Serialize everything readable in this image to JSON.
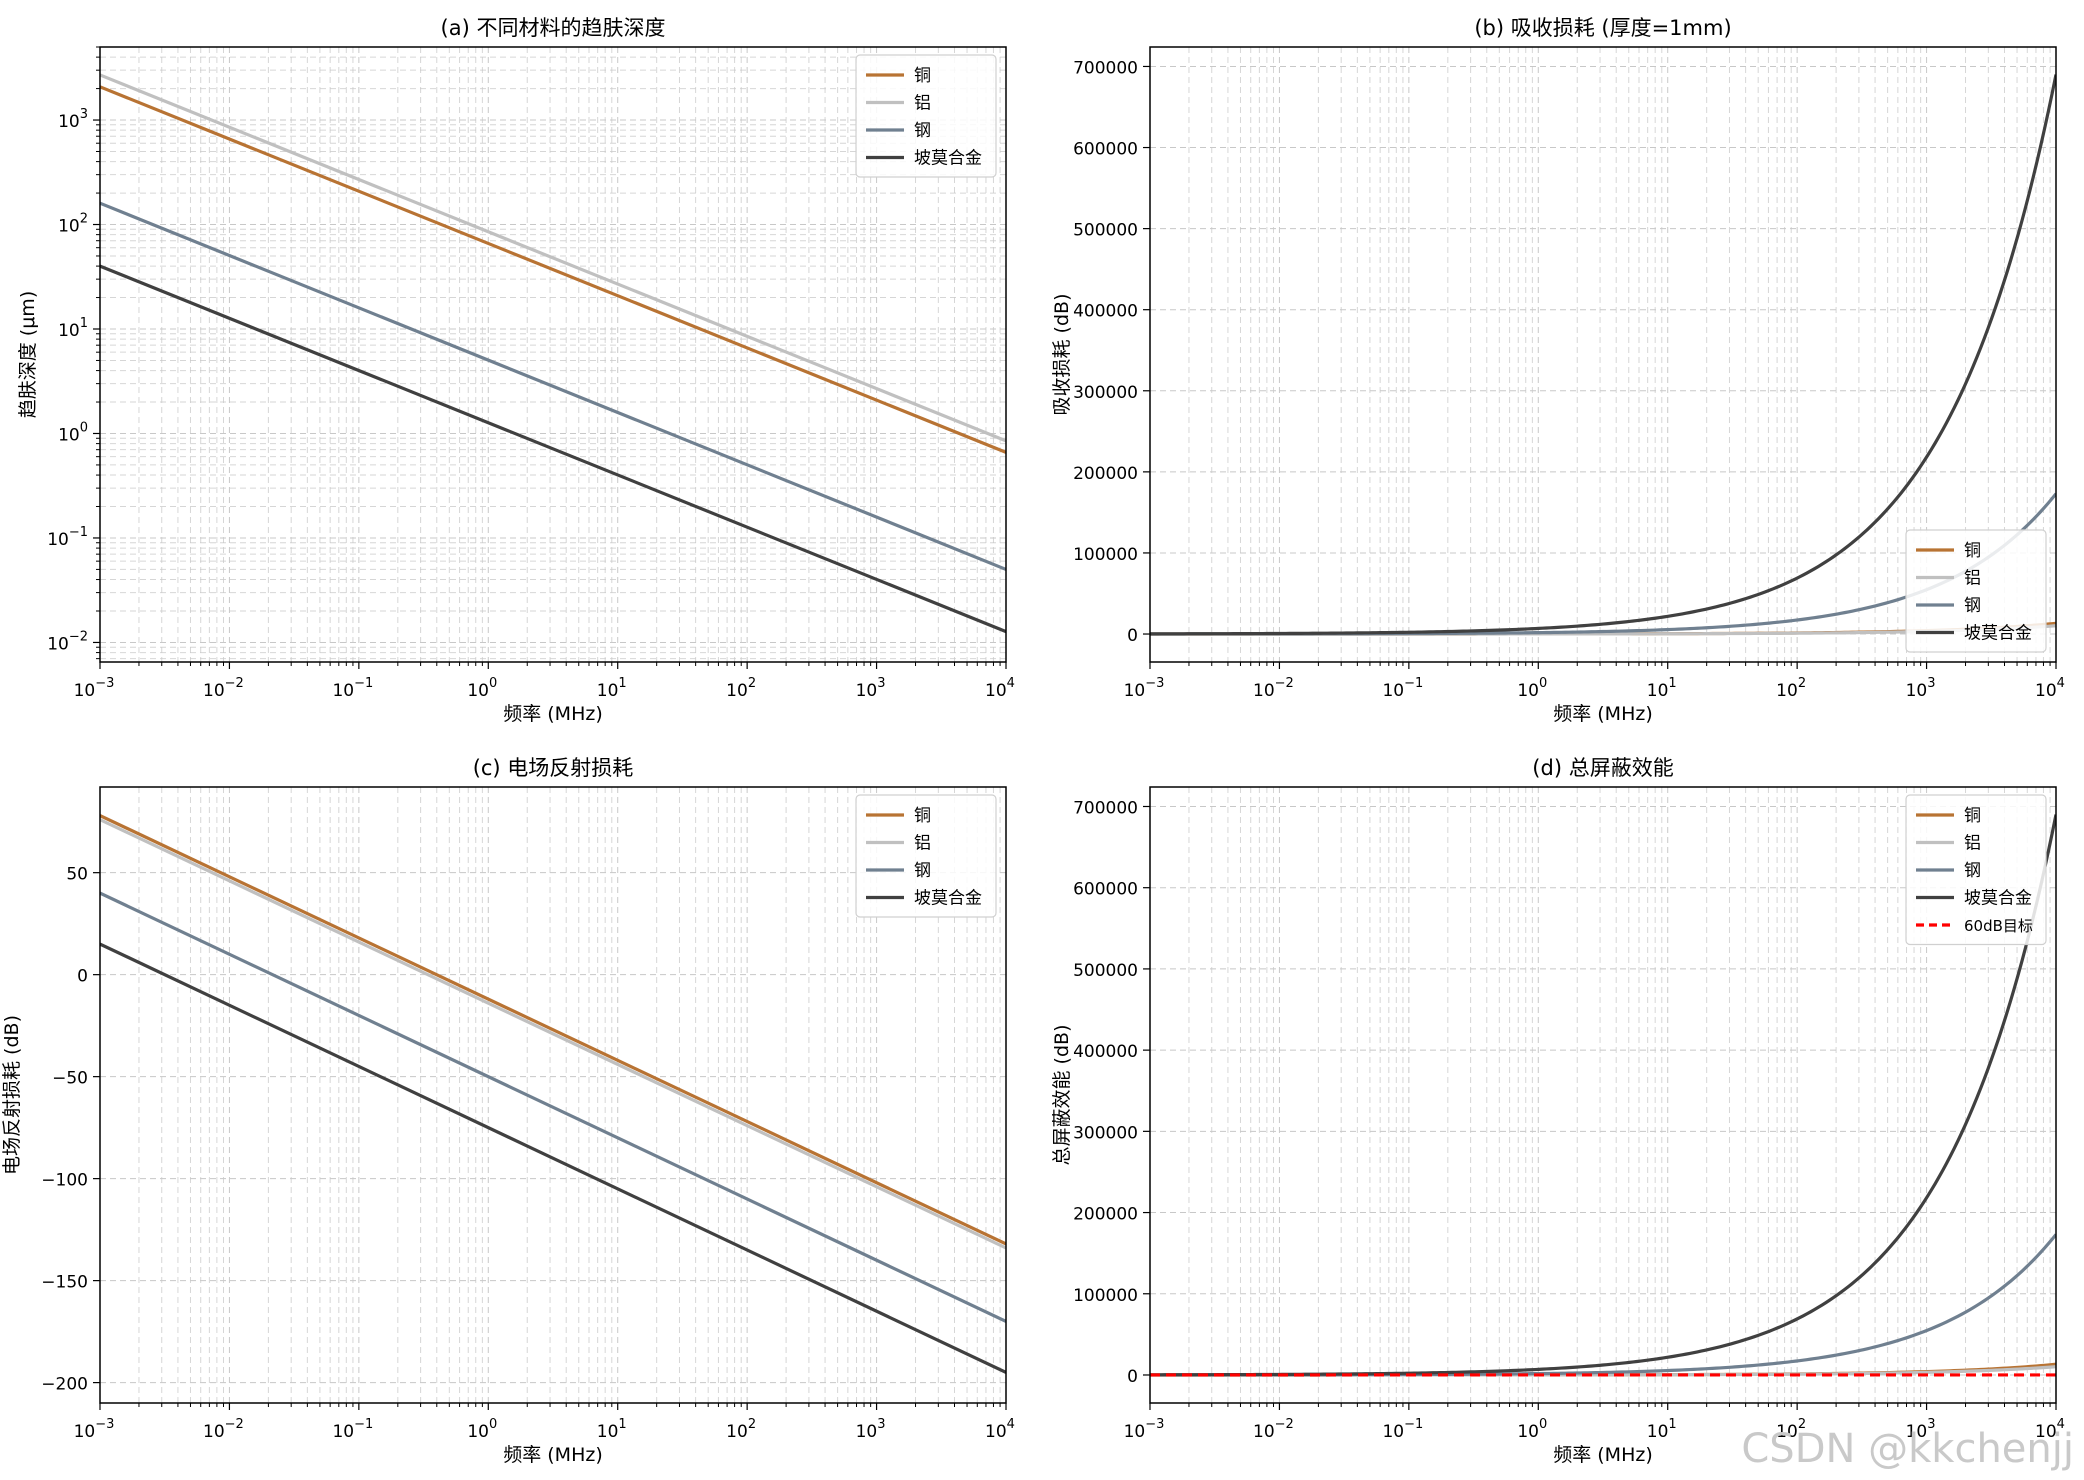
{
  "watermark": "CSDN @kkchenjj",
  "colors": {
    "copper": "#b87333",
    "aluminum": "#c0c0c0",
    "steel": "#708090",
    "permalloy": "#404040",
    "target": "#ff0000",
    "grid": "#c8c8c8"
  },
  "chart_data": [
    {
      "type": "line",
      "title": "(a) 不同材料的趋肤深度",
      "xlabel": "频率 (MHz)",
      "ylabel": "趋肤深度 (μm)",
      "xscale": "log",
      "yscale": "log",
      "xlim": [
        0.001,
        10000
      ],
      "ylim": [
        0.0065,
        5000
      ],
      "xticks": [
        {
          "value": 0.001,
          "base": "10",
          "exp": "−3"
        },
        {
          "value": 0.01,
          "base": "10",
          "exp": "−2"
        },
        {
          "value": 0.1,
          "base": "10",
          "exp": "−1"
        },
        {
          "value": 1,
          "base": "10",
          "exp": "0"
        },
        {
          "value": 10,
          "base": "10",
          "exp": "1"
        },
        {
          "value": 100,
          "base": "10",
          "exp": "2"
        },
        {
          "value": 1000,
          "base": "10",
          "exp": "3"
        },
        {
          "value": 10000,
          "base": "10",
          "exp": "4"
        }
      ],
      "yticks": [
        {
          "value": 0.01,
          "base": "10",
          "exp": "−2"
        },
        {
          "value": 0.1,
          "base": "10",
          "exp": "−1"
        },
        {
          "value": 1,
          "base": "10",
          "exp": "0"
        },
        {
          "value": 10,
          "base": "10",
          "exp": "1"
        },
        {
          "value": 100,
          "base": "10",
          "exp": "2"
        },
        {
          "value": 1000,
          "base": "10",
          "exp": "3"
        }
      ],
      "legend": "top-right",
      "series": [
        {
          "name": "铜",
          "color": "copper",
          "x": [
            0.001,
            10000
          ],
          "y": [
            2080,
            0.66
          ]
        },
        {
          "name": "铝",
          "color": "aluminum",
          "x": [
            0.001,
            10000
          ],
          "y": [
            2700,
            0.85
          ]
        },
        {
          "name": "钢",
          "color": "steel",
          "x": [
            0.001,
            10000
          ],
          "y": [
            160,
            0.05
          ]
        },
        {
          "name": "坡莫合金",
          "color": "permalloy",
          "x": [
            0.001,
            10000
          ],
          "y": [
            40,
            0.0127
          ]
        }
      ]
    },
    {
      "type": "line",
      "title": "(b) 吸收损耗 (厚度=1mm)",
      "xlabel": "频率 (MHz)",
      "ylabel": "吸收损耗 (dB)",
      "xscale": "log",
      "yscale": "linear",
      "xlim": [
        0.001,
        10000
      ],
      "ylim": [
        -34500,
        724000
      ],
      "xticks": [
        {
          "value": 0.001,
          "base": "10",
          "exp": "−3"
        },
        {
          "value": 0.01,
          "base": "10",
          "exp": "−2"
        },
        {
          "value": 0.1,
          "base": "10",
          "exp": "−1"
        },
        {
          "value": 1,
          "base": "10",
          "exp": "0"
        },
        {
          "value": 10,
          "base": "10",
          "exp": "1"
        },
        {
          "value": 100,
          "base": "10",
          "exp": "2"
        },
        {
          "value": 1000,
          "base": "10",
          "exp": "3"
        },
        {
          "value": 10000,
          "base": "10",
          "exp": "4"
        }
      ],
      "yticks": [
        {
          "value": 0,
          "label": "0"
        },
        {
          "value": 100000,
          "label": "100000"
        },
        {
          "value": 200000,
          "label": "200000"
        },
        {
          "value": 300000,
          "label": "300000"
        },
        {
          "value": 400000,
          "label": "400000"
        },
        {
          "value": 500000,
          "label": "500000"
        },
        {
          "value": 600000,
          "label": "600000"
        },
        {
          "value": 700000,
          "label": "700000"
        }
      ],
      "legend": "bottom-right",
      "series": [
        {
          "name": "铜",
          "color": "copper",
          "model": "sqrt",
          "at_xmax": 13200
        },
        {
          "name": "铝",
          "color": "aluminum",
          "model": "sqrt",
          "at_xmax": 10200
        },
        {
          "name": "钢",
          "color": "steel",
          "model": "sqrt",
          "at_xmax": 173000
        },
        {
          "name": "坡莫合金",
          "color": "permalloy",
          "model": "sqrt",
          "at_xmax": 690000
        }
      ]
    },
    {
      "type": "line",
      "title": "(c) 电场反射损耗",
      "xlabel": "频率 (MHz)",
      "ylabel": "电场反射损耗 (dB)",
      "xscale": "log",
      "yscale": "linear",
      "xlim": [
        0.001,
        10000
      ],
      "ylim": [
        -210,
        92
      ],
      "xticks": [
        {
          "value": 0.001,
          "base": "10",
          "exp": "−3"
        },
        {
          "value": 0.01,
          "base": "10",
          "exp": "−2"
        },
        {
          "value": 0.1,
          "base": "10",
          "exp": "−1"
        },
        {
          "value": 1,
          "base": "10",
          "exp": "0"
        },
        {
          "value": 10,
          "base": "10",
          "exp": "1"
        },
        {
          "value": 100,
          "base": "10",
          "exp": "2"
        },
        {
          "value": 1000,
          "base": "10",
          "exp": "3"
        },
        {
          "value": 10000,
          "base": "10",
          "exp": "4"
        }
      ],
      "yticks": [
        {
          "value": 50,
          "label": "50"
        },
        {
          "value": 0,
          "label": "0"
        },
        {
          "value": -50,
          "label": "−50"
        },
        {
          "value": -100,
          "label": "−100"
        },
        {
          "value": -150,
          "label": "−150"
        },
        {
          "value": -200,
          "label": "−200"
        }
      ],
      "legend": "top-right",
      "series": [
        {
          "name": "铜",
          "color": "copper",
          "x": [
            0.001,
            10000
          ],
          "y": [
            78,
            -132
          ]
        },
        {
          "name": "铝",
          "color": "aluminum",
          "x": [
            0.001,
            10000
          ],
          "y": [
            76,
            -134
          ]
        },
        {
          "name": "钢",
          "color": "steel",
          "x": [
            0.001,
            10000
          ],
          "y": [
            40,
            -170
          ]
        },
        {
          "name": "坡莫合金",
          "color": "permalloy",
          "x": [
            0.001,
            10000
          ],
          "y": [
            15,
            -195
          ]
        }
      ]
    },
    {
      "type": "line",
      "title": "(d) 总屏蔽效能",
      "xlabel": "频率 (MHz)",
      "ylabel": "总屏蔽效能 (dB)",
      "xscale": "log",
      "yscale": "linear",
      "xlim": [
        0.001,
        10000
      ],
      "ylim": [
        -34500,
        724000
      ],
      "xticks": [
        {
          "value": 0.001,
          "base": "10",
          "exp": "−3"
        },
        {
          "value": 0.01,
          "base": "10",
          "exp": "−2"
        },
        {
          "value": 0.1,
          "base": "10",
          "exp": "−1"
        },
        {
          "value": 1,
          "base": "10",
          "exp": "0"
        },
        {
          "value": 10,
          "base": "10",
          "exp": "1"
        },
        {
          "value": 100,
          "base": "10",
          "exp": "2"
        },
        {
          "value": 1000,
          "base": "10",
          "exp": "3"
        },
        {
          "value": 10000,
          "base": "10",
          "exp": "4"
        }
      ],
      "yticks": [
        {
          "value": 0,
          "label": "0"
        },
        {
          "value": 100000,
          "label": "100000"
        },
        {
          "value": 200000,
          "label": "200000"
        },
        {
          "value": 300000,
          "label": "300000"
        },
        {
          "value": 400000,
          "label": "400000"
        },
        {
          "value": 500000,
          "label": "500000"
        },
        {
          "value": 600000,
          "label": "600000"
        },
        {
          "value": 700000,
          "label": "700000"
        }
      ],
      "legend": "top-right",
      "series": [
        {
          "name": "铜",
          "color": "copper",
          "model": "sqrt",
          "at_xmax": 13200
        },
        {
          "name": "铝",
          "color": "aluminum",
          "model": "sqrt",
          "at_xmax": 10200
        },
        {
          "name": "钢",
          "color": "steel",
          "model": "sqrt",
          "at_xmax": 173000
        },
        {
          "name": "坡莫合金",
          "color": "permalloy",
          "model": "sqrt",
          "at_xmax": 690000
        },
        {
          "name": "60dB目标",
          "color": "target",
          "model": "const",
          "value": 60,
          "dashed": true,
          "small_label": true
        }
      ]
    }
  ]
}
